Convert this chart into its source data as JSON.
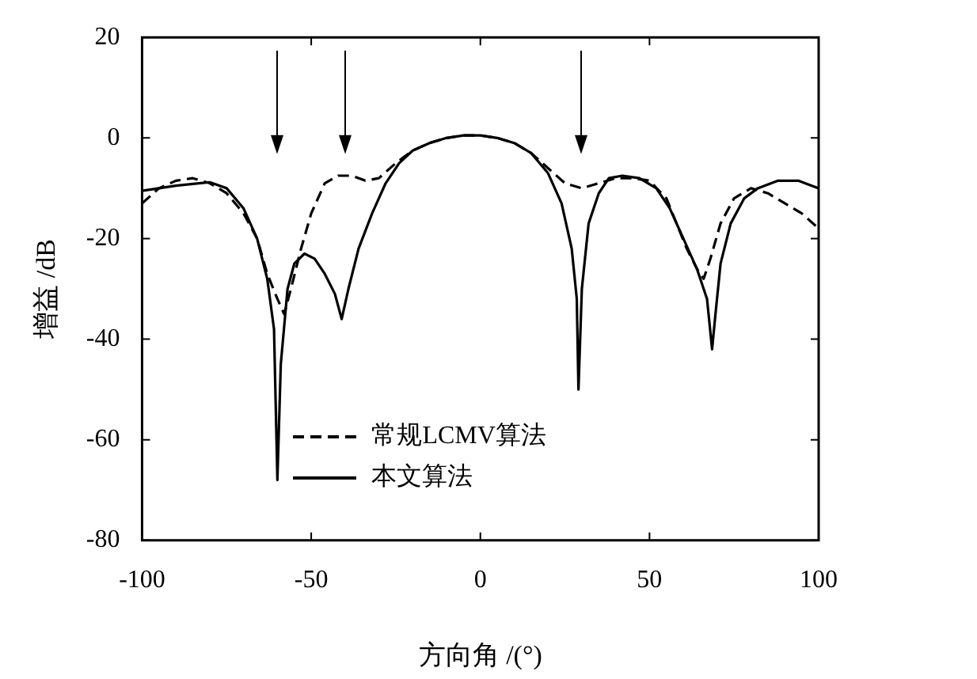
{
  "chart_data": {
    "type": "line",
    "xlabel": "方向角 /(°)",
    "ylabel": "增益 /dB",
    "xlim": [
      -100,
      100
    ],
    "xticks": [
      -100,
      -50,
      0,
      50,
      100
    ],
    "ylim": [
      -80,
      20
    ],
    "yticks": [
      -80,
      -60,
      -40,
      -20,
      0,
      20
    ],
    "grid": false,
    "legend": "bottom",
    "marker": "none",
    "series": [
      {
        "name": "常规LCMV算法",
        "color": "#000000",
        "line_style": "dashed",
        "x": [
          -100,
          -95,
          -90,
          -85,
          -80,
          -75,
          -70,
          -66,
          -63,
          -60,
          -58,
          -56,
          -53,
          -50,
          -46,
          -42,
          -38,
          -34,
          -30,
          -25,
          -20,
          -15,
          -10,
          -5,
          0,
          5,
          10,
          15,
          20,
          25,
          30,
          35,
          40,
          45,
          50,
          55,
          58,
          61,
          64,
          66,
          68,
          71,
          75,
          80,
          85,
          90,
          95,
          100
        ],
        "values": [
          -13,
          -10,
          -8.5,
          -8,
          -9,
          -11,
          -15,
          -20,
          -27,
          -32,
          -35,
          -30,
          -22,
          -15,
          -9,
          -7.5,
          -7.5,
          -8.5,
          -8,
          -5,
          -2.5,
          -1,
          0,
          0.5,
          0.5,
          0,
          -1,
          -3,
          -6,
          -9,
          -10,
          -9,
          -8,
          -8,
          -8.5,
          -12,
          -17,
          -22,
          -26,
          -28,
          -24,
          -17,
          -12,
          -10,
          -11,
          -13,
          -15,
          -18
        ]
      },
      {
        "name": "本文算法",
        "color": "#000000",
        "line_style": "solid",
        "x": [
          -100,
          -90,
          -80,
          -75,
          -70,
          -66,
          -63,
          -61,
          -60,
          -59,
          -57,
          -55,
          -52,
          -49,
          -46,
          -43,
          -41,
          -39,
          -36,
          -32,
          -28,
          -24,
          -20,
          -15,
          -10,
          -5,
          0,
          5,
          10,
          15,
          20,
          24,
          27,
          28.5,
          29,
          30,
          32,
          35,
          38,
          42,
          47,
          52,
          56,
          60,
          64,
          67,
          68.5,
          69.5,
          71,
          74,
          78,
          82,
          88,
          94,
          100
        ],
        "values": [
          -10.5,
          -9.5,
          -8.8,
          -10,
          -14,
          -20,
          -28,
          -38,
          -68,
          -45,
          -30,
          -25,
          -23,
          -24,
          -27,
          -31,
          -36,
          -30,
          -22,
          -15,
          -9,
          -5,
          -2.5,
          -1,
          0,
          0.5,
          0.5,
          0,
          -1,
          -3,
          -7,
          -13,
          -22,
          -32,
          -50,
          -30,
          -17,
          -11,
          -8,
          -7.5,
          -8,
          -10,
          -14,
          -20,
          -26,
          -32,
          -42,
          -35,
          -25,
          -17,
          -12,
          -10,
          -8.5,
          -8.5,
          -10
        ]
      }
    ]
  }
}
